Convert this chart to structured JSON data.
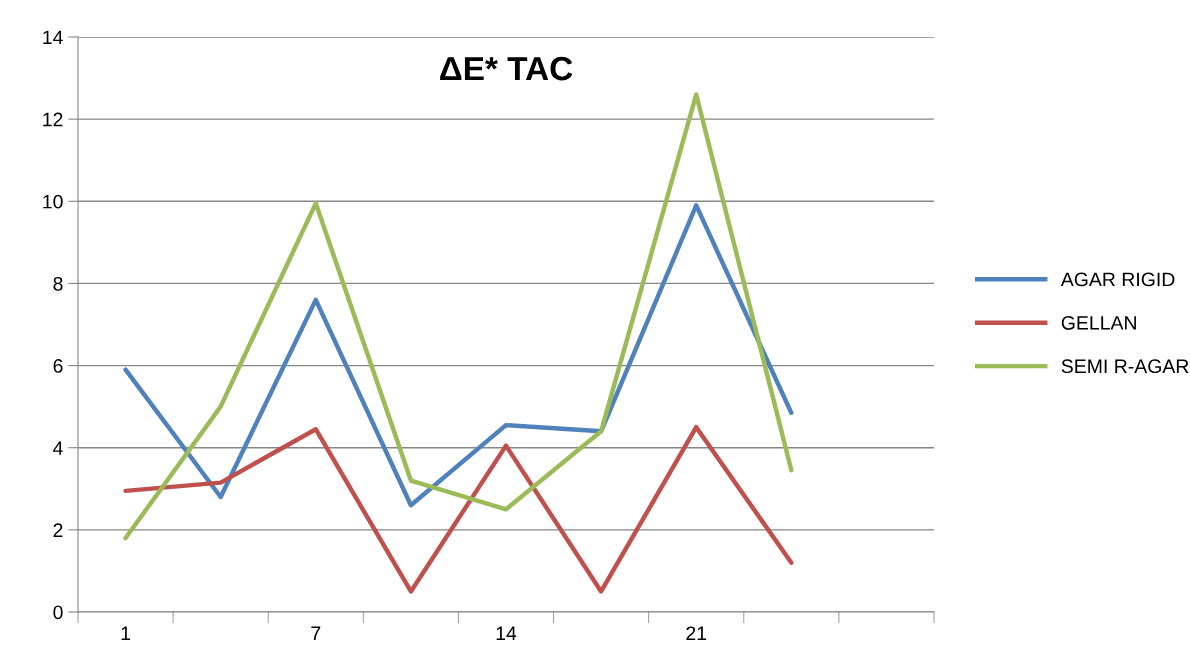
{
  "chart_data": {
    "type": "line",
    "title": "ΔE* TAC",
    "categories": [
      "1",
      null,
      "7",
      null,
      "14",
      null,
      "21",
      null,
      null
    ],
    "series": [
      {
        "name": "AGAR RIGID",
        "color": "#4f81bd",
        "values": [
          5.9,
          2.8,
          7.6,
          2.6,
          4.55,
          4.4,
          9.9,
          4.85,
          null
        ]
      },
      {
        "name": "GELLAN",
        "color": "#c0504d",
        "values": [
          2.95,
          3.15,
          4.45,
          0.5,
          4.05,
          0.5,
          4.5,
          1.2,
          null
        ]
      },
      {
        "name": "SEMI R-AGAR",
        "color": "#9bbb59",
        "values": [
          1.8,
          5.0,
          9.95,
          3.2,
          2.5,
          4.4,
          12.6,
          3.45,
          null
        ]
      }
    ],
    "ylim": [
      0,
      14
    ],
    "yticks": [
      0,
      2,
      4,
      6,
      8,
      10,
      12,
      14
    ],
    "grid": "y",
    "legend": "right",
    "marker": "none",
    "line_style": "solid"
  }
}
